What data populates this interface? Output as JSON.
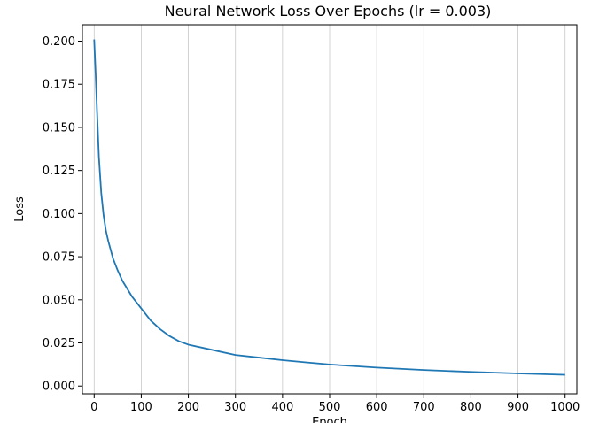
{
  "chart_data": {
    "type": "line",
    "title": "Neural Network Loss Over Epochs (lr = 0.003)",
    "xlabel": "Epoch",
    "ylabel": "Loss",
    "xlim": [
      -25,
      1025
    ],
    "ylim": [
      -0.0045,
      0.2095
    ],
    "xticks": [
      0,
      100,
      200,
      300,
      400,
      500,
      600,
      700,
      800,
      900,
      1000
    ],
    "yticks": [
      0.0,
      0.025,
      0.05,
      0.075,
      0.1,
      0.125,
      0.15,
      0.175,
      0.2
    ],
    "xtick_labels": [
      "0",
      "100",
      "200",
      "300",
      "400",
      "500",
      "600",
      "700",
      "800",
      "900",
      "1000"
    ],
    "ytick_labels": [
      "0.000",
      "0.025",
      "0.050",
      "0.075",
      "0.100",
      "0.125",
      "0.150",
      "0.175",
      "0.200"
    ],
    "grid": "x-only",
    "line_color": "#1f77b4",
    "grid_color": "#b0b0b0",
    "series": [
      {
        "x": [
          0,
          3,
          6,
          10,
          15,
          20,
          25,
          30,
          40,
          50,
          60,
          80,
          100,
          120,
          140,
          160,
          180,
          200,
          250,
          300,
          350,
          400,
          450,
          500,
          600,
          700,
          800,
          900,
          1000
        ],
        "values": [
          0.201,
          0.182,
          0.16,
          0.133,
          0.112,
          0.099,
          0.09,
          0.084,
          0.074,
          0.067,
          0.061,
          0.052,
          0.045,
          0.038,
          0.033,
          0.029,
          0.026,
          0.024,
          0.021,
          0.018,
          0.0165,
          0.015,
          0.0137,
          0.0125,
          0.0107,
          0.0093,
          0.0082,
          0.0073,
          0.0065
        ]
      }
    ]
  }
}
